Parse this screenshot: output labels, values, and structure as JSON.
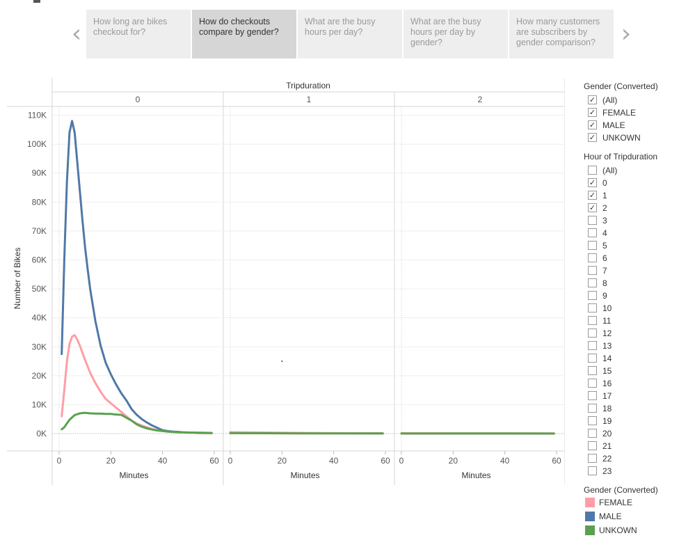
{
  "story": {
    "points": [
      {
        "label": "How long are bikes checkout for?",
        "active": false
      },
      {
        "label": "How do checkouts compare by gender?",
        "active": true
      },
      {
        "label": "What are the busy hours per day?",
        "active": false
      },
      {
        "label": "What are the busy hours per day by gender?",
        "active": false
      },
      {
        "label": "How many customers are subscribers by gender comparison?",
        "active": false
      }
    ],
    "prev_glyph": "‹",
    "next_glyph": "›"
  },
  "filters": {
    "gender_title": "Gender (Converted)",
    "gender_items": [
      {
        "label": "(All)",
        "checked": true
      },
      {
        "label": "FEMALE",
        "checked": true
      },
      {
        "label": "MALE",
        "checked": true
      },
      {
        "label": "UNKOWN",
        "checked": true
      }
    ],
    "hour_title": "Hour of Tripduration",
    "hour_items": [
      {
        "label": "(All)",
        "checked": false
      },
      {
        "label": "0",
        "checked": true
      },
      {
        "label": "1",
        "checked": true
      },
      {
        "label": "2",
        "checked": true
      },
      {
        "label": "3",
        "checked": false
      },
      {
        "label": "4",
        "checked": false
      },
      {
        "label": "5",
        "checked": false
      },
      {
        "label": "6",
        "checked": false
      },
      {
        "label": "7",
        "checked": false
      },
      {
        "label": "8",
        "checked": false
      },
      {
        "label": "9",
        "checked": false
      },
      {
        "label": "10",
        "checked": false
      },
      {
        "label": "11",
        "checked": false
      },
      {
        "label": "12",
        "checked": false
      },
      {
        "label": "13",
        "checked": false
      },
      {
        "label": "14",
        "checked": false
      },
      {
        "label": "15",
        "checked": false
      },
      {
        "label": "16",
        "checked": false
      },
      {
        "label": "17",
        "checked": false
      },
      {
        "label": "18",
        "checked": false
      },
      {
        "label": "19",
        "checked": false
      },
      {
        "label": "20",
        "checked": false
      },
      {
        "label": "21",
        "checked": false
      },
      {
        "label": "22",
        "checked": false
      },
      {
        "label": "23",
        "checked": false
      }
    ],
    "check_glyph": "✓"
  },
  "color_legend": {
    "title": "Gender (Converted)",
    "items": [
      {
        "label": "FEMALE",
        "color": "#ff9da7"
      },
      {
        "label": "MALE",
        "color": "#4e79a7"
      },
      {
        "label": "UNKOWN",
        "color": "#59a14f"
      }
    ]
  },
  "chart_data": {
    "type": "line",
    "column_header": "Tripduration",
    "panels": [
      "0",
      "1",
      "2"
    ],
    "xlabel": "Minutes",
    "ylabel": "Number of Bikes",
    "xlim": [
      0,
      60
    ],
    "ylim": [
      -6000,
      113000
    ],
    "x_ticks": [
      0,
      20,
      40,
      60
    ],
    "y_ticks": [
      0,
      10000,
      20000,
      30000,
      40000,
      50000,
      60000,
      70000,
      80000,
      90000,
      100000,
      110000
    ],
    "y_tick_labels": [
      "0K",
      "10K",
      "20K",
      "30K",
      "40K",
      "50K",
      "60K",
      "70K",
      "80K",
      "90K",
      "100K",
      "110K"
    ],
    "grid": true,
    "series": [
      {
        "name": "MALE",
        "color": "#4e79a7",
        "panels": [
          {
            "x": [
              1,
              2,
              3,
              4,
              5,
              6,
              7,
              8,
              9,
              10,
              11,
              12,
              14,
              16,
              18,
              20,
              22,
              24,
              26,
              28,
              30,
              32,
              34,
              36,
              38,
              40,
              42,
              44,
              46,
              48,
              50,
              52,
              54,
              56,
              58,
              59
            ],
            "y": [
              27500,
              60000,
              87000,
              104000,
              108000,
              104000,
              94000,
              84000,
              74000,
              64500,
              57000,
              50000,
              39000,
              30500,
              24500,
              20500,
              17000,
              14000,
              11500,
              8500,
              6500,
              5000,
              3800,
              2800,
              2000,
              1200,
              900,
              700,
              600,
              450,
              350,
              250,
              200,
              150,
              120,
              100
            ]
          },
          {
            "x": [
              0,
              10,
              20,
              30,
              40,
              50,
              59
            ],
            "y": [
              300,
              250,
              200,
              150,
              120,
              100,
              80
            ]
          },
          {
            "x": [
              0,
              10,
              20,
              30,
              40,
              50,
              59
            ],
            "y": [
              80,
              70,
              60,
              50,
              50,
              40,
              40
            ]
          }
        ]
      },
      {
        "name": "FEMALE",
        "color": "#ff9da7",
        "panels": [
          {
            "x": [
              1,
              2,
              3,
              4,
              5,
              6,
              7,
              8,
              9,
              10,
              12,
              14,
              16,
              18,
              20,
              22,
              24,
              26,
              28,
              30,
              32,
              34,
              36,
              38,
              40,
              42,
              44,
              46,
              48,
              50,
              54,
              58,
              59
            ],
            "y": [
              6000,
              15000,
              25000,
              31000,
              33500,
              34000,
              32500,
              30500,
              28000,
              25500,
              21000,
              17500,
              14500,
              12000,
              10500,
              9000,
              7500,
              6000,
              4500,
              3500,
              2800,
              2200,
              1600,
              1200,
              900,
              700,
              550,
              450,
              350,
              300,
              200,
              150,
              100
            ]
          },
          {
            "x": [
              0,
              10,
              20,
              30,
              40,
              50,
              59
            ],
            "y": [
              500,
              400,
              300,
              200,
              150,
              120,
              100
            ]
          },
          {
            "x": [
              0,
              10,
              20,
              30,
              40,
              50,
              59
            ],
            "y": [
              150,
              120,
              100,
              90,
              80,
              70,
              60
            ]
          }
        ]
      },
      {
        "name": "UNKOWN",
        "color": "#59a14f",
        "panels": [
          {
            "x": [
              1,
              2,
              4,
              6,
              8,
              10,
              12,
              14,
              16,
              18,
              20,
              22,
              24,
              26,
              28,
              30,
              32,
              34,
              36,
              38,
              40,
              42,
              44,
              46,
              50,
              55,
              59
            ],
            "y": [
              1500,
              2200,
              4800,
              6400,
              7000,
              7200,
              7000,
              6900,
              6900,
              6800,
              6800,
              6600,
              6500,
              5500,
              4500,
              3200,
              2400,
              1800,
              1400,
              1100,
              900,
              700,
              600,
              500,
              400,
              300,
              250
            ]
          },
          {
            "x": [
              0,
              10,
              20,
              30,
              40,
              50,
              59
            ],
            "y": [
              150,
              120,
              100,
              80,
              70,
              60,
              50
            ]
          },
          {
            "x": [
              0,
              10,
              20,
              30,
              40,
              50,
              59
            ],
            "y": [
              40,
              35,
              30,
              30,
              25,
              25,
              20
            ]
          }
        ]
      }
    ],
    "annotations": [
      {
        "panel": "1",
        "x": 20,
        "y": 25000,
        "mark": "point",
        "color": "#c0405a"
      }
    ]
  }
}
